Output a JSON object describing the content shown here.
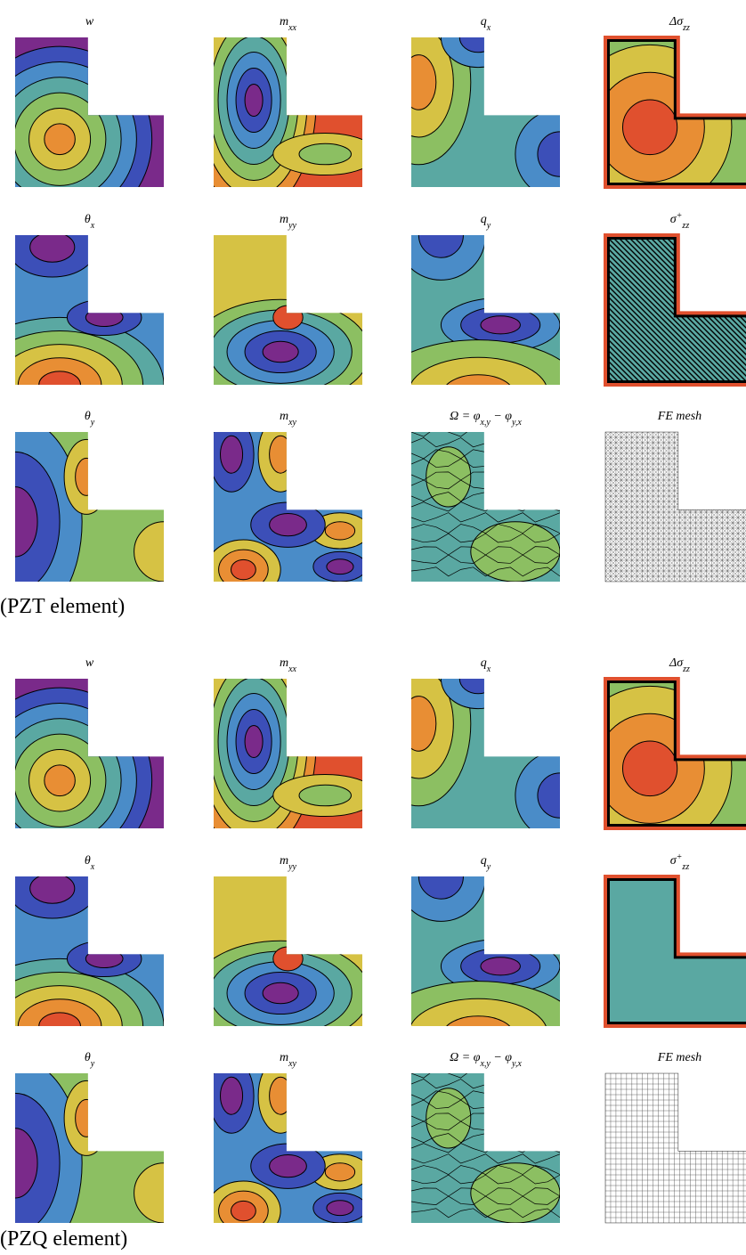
{
  "groups": [
    {
      "caption": "(PZT element)",
      "mesh": "triangle",
      "panels": [
        {
          "title": [
            {
              "text": "w"
            }
          ]
        },
        {
          "title": [
            {
              "text": "m"
            },
            {
              "text": "xx",
              "pos": "sub"
            }
          ]
        },
        {
          "title": [
            {
              "text": "q"
            },
            {
              "text": "x",
              "pos": "sub"
            }
          ]
        },
        {
          "title": [
            {
              "text": "Δσ"
            },
            {
              "text": "zz",
              "pos": "sub"
            }
          ]
        },
        {
          "title": [
            {
              "text": "θ"
            },
            {
              "text": "x",
              "pos": "sub"
            }
          ]
        },
        {
          "title": [
            {
              "text": "m"
            },
            {
              "text": "yy",
              "pos": "sub"
            }
          ]
        },
        {
          "title": [
            {
              "text": "q"
            },
            {
              "text": "y",
              "pos": "sub"
            }
          ]
        },
        {
          "title": [
            {
              "text": "σ"
            },
            {
              "text": "+",
              "pos": "sup"
            },
            {
              "text": "zz",
              "pos": "sub"
            }
          ]
        },
        {
          "title": [
            {
              "text": "θ"
            },
            {
              "text": "y",
              "pos": "sub"
            }
          ]
        },
        {
          "title": [
            {
              "text": "m"
            },
            {
              "text": "xy",
              "pos": "sub"
            }
          ]
        },
        {
          "title": [
            {
              "text": "Ω = φ"
            },
            {
              "text": "x,y",
              "pos": "sub"
            },
            {
              "text": " − φ"
            },
            {
              "text": "y,x",
              "pos": "sub"
            }
          ]
        },
        {
          "title": [
            {
              "text": "FE mesh"
            }
          ]
        }
      ]
    },
    {
      "caption": "(PZQ element)",
      "mesh": "quad",
      "panels": [
        {
          "title": [
            {
              "text": "w"
            }
          ]
        },
        {
          "title": [
            {
              "text": "m"
            },
            {
              "text": "xx",
              "pos": "sub"
            }
          ]
        },
        {
          "title": [
            {
              "text": "q"
            },
            {
              "text": "x",
              "pos": "sub"
            }
          ]
        },
        {
          "title": [
            {
              "text": "Δσ"
            },
            {
              "text": "zz",
              "pos": "sub"
            }
          ]
        },
        {
          "title": [
            {
              "text": "θ"
            },
            {
              "text": "x",
              "pos": "sub"
            }
          ]
        },
        {
          "title": [
            {
              "text": "m"
            },
            {
              "text": "yy",
              "pos": "sub"
            }
          ]
        },
        {
          "title": [
            {
              "text": "q"
            },
            {
              "text": "y",
              "pos": "sub"
            }
          ]
        },
        {
          "title": [
            {
              "text": "σ"
            },
            {
              "text": "+",
              "pos": "sup"
            },
            {
              "text": "zz",
              "pos": "sub"
            }
          ]
        },
        {
          "title": [
            {
              "text": "θ"
            },
            {
              "text": "y",
              "pos": "sub"
            }
          ]
        },
        {
          "title": [
            {
              "text": "m"
            },
            {
              "text": "xy",
              "pos": "sub"
            }
          ]
        },
        {
          "title": [
            {
              "text": "Ω = φ"
            },
            {
              "text": "x,y",
              "pos": "sub"
            },
            {
              "text": " − φ"
            },
            {
              "text": "y,x",
              "pos": "sub"
            }
          ]
        },
        {
          "title": [
            {
              "text": "FE mesh"
            }
          ]
        }
      ]
    }
  ]
}
